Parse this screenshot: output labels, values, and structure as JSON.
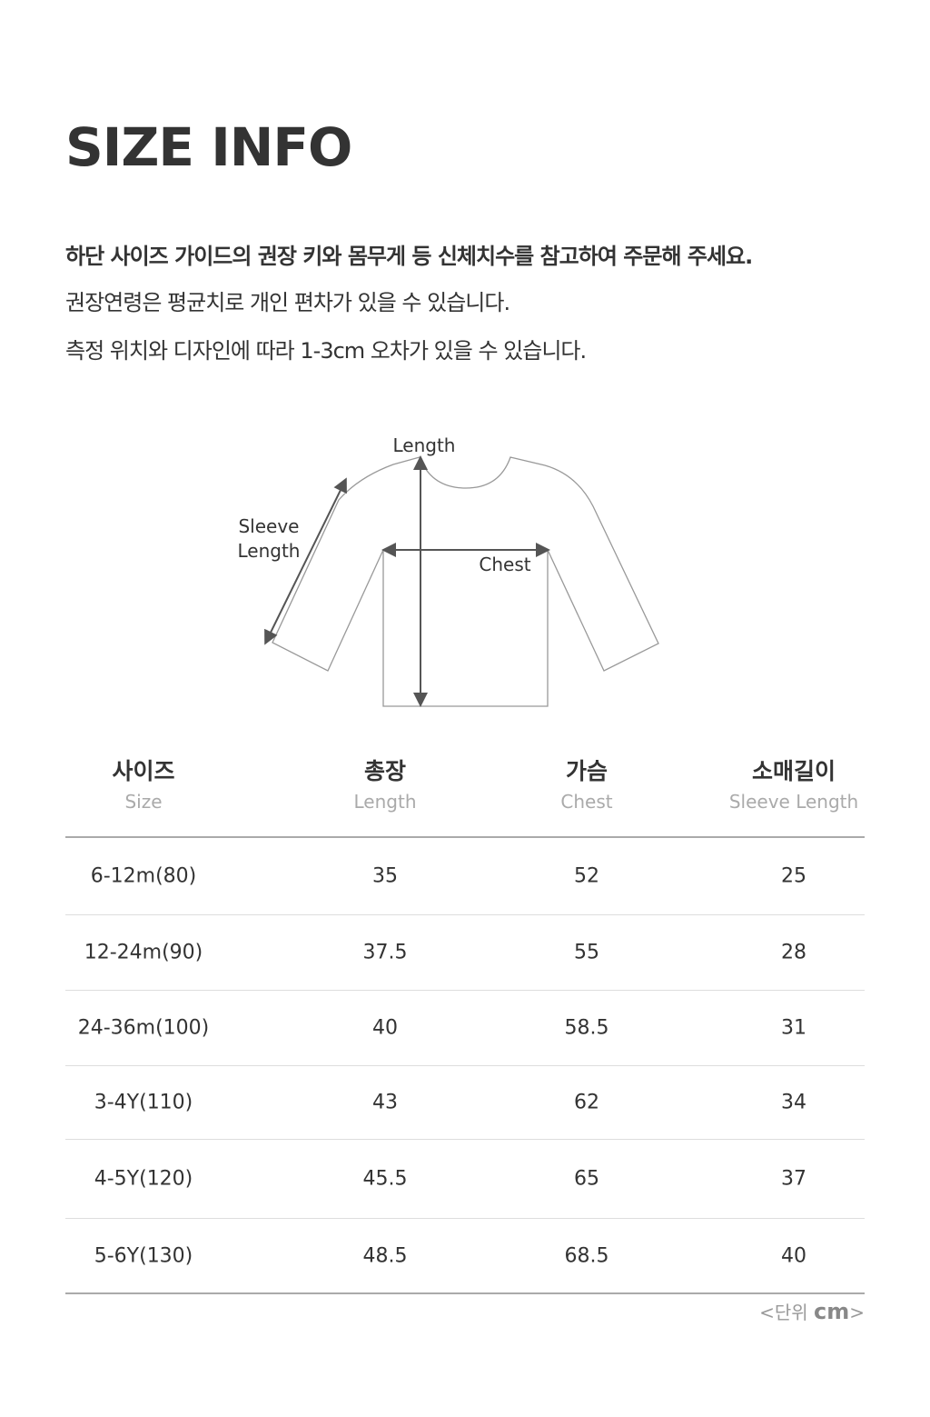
{
  "title": "SIZE INFO",
  "notices": [
    "하단 사이즈 가이드의 권장 키와 몸무게 등 신체치수를 참고하여 주문해 주세요.",
    "권장연령은 평균치로 개인 편차가 있을 수 있습니다.",
    "측정 위치와 디자인에 따라 1-3cm 오차가 있을 수 있습니다."
  ],
  "diagram": {
    "length_label": "Length",
    "sleeve_label_1": "Sleeve",
    "sleeve_label_2": "Length",
    "chest_label": "Chest"
  },
  "table": {
    "headers": [
      {
        "ko": "사이즈",
        "en": "Size"
      },
      {
        "ko": "총장",
        "en": "Length"
      },
      {
        "ko": "가슴",
        "en": "Chest"
      },
      {
        "ko": "소매길이",
        "en": "Sleeve Length"
      }
    ],
    "rows": [
      [
        "6-12m(80)",
        "35",
        "52",
        "25"
      ],
      [
        "12-24m(90)",
        "37.5",
        "55",
        "28"
      ],
      [
        "24-36m(100)",
        "40",
        "58.5",
        "31"
      ],
      [
        "3-4Y(110)",
        "43",
        "62",
        "34"
      ],
      [
        "4-5Y(120)",
        "45.5",
        "65",
        "37"
      ],
      [
        "5-6Y(130)",
        "48.5",
        "68.5",
        "40"
      ]
    ]
  },
  "unit": {
    "prefix": "<단위 ",
    "value": "cm",
    "suffix": ">"
  }
}
